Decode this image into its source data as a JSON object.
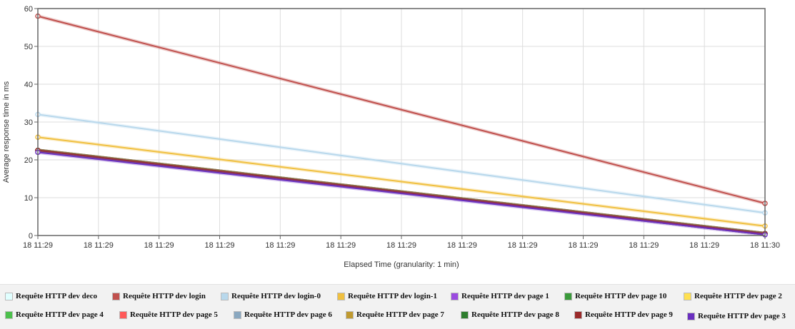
{
  "chart_data": {
    "type": "line",
    "xlabel": "Elapsed Time (granularity: 1 min)",
    "ylabel": "Average response time in ms",
    "ylim": [
      0,
      60
    ],
    "yticks": [
      0,
      10,
      20,
      30,
      40,
      50,
      60
    ],
    "xtick_labels": [
      "18 11:29",
      "18 11:29",
      "18 11:29",
      "18 11:29",
      "18 11:29",
      "18 11:29",
      "18 11:29",
      "18 11:29",
      "18 11:29",
      "18 11:29",
      "18 11:29",
      "18 11:29",
      "18 11:30"
    ],
    "x": [
      "18 11:29",
      "18 11:30"
    ],
    "grid": true,
    "legend_position": "bottom",
    "series": [
      {
        "name": "Requête HTTP dev deco",
        "color": "#e0ffff",
        "values": [
          22.5,
          0.5
        ]
      },
      {
        "name": "Requête HTTP dev login",
        "color": "#c0504d",
        "values": [
          58,
          8.5
        ]
      },
      {
        "name": "Requête HTTP dev login-0",
        "color": "#b8d8ec",
        "values": [
          32,
          6
        ]
      },
      {
        "name": "Requête HTTP dev login-1",
        "color": "#f0c040",
        "values": [
          26,
          2.5
        ]
      },
      {
        "name": "Requête HTTP dev page 1",
        "color": "#9b4be0",
        "values": [
          22.5,
          0.5
        ]
      },
      {
        "name": "Requête HTTP dev page 10",
        "color": "#3a9a3a",
        "values": [
          22.5,
          0.5
        ]
      },
      {
        "name": "Requête HTTP dev page 2",
        "color": "#ffe050",
        "values": [
          22.5,
          0.5
        ]
      },
      {
        "name": "Requête HTTP dev page 4",
        "color": "#4cc04c",
        "values": [
          22.5,
          0.5
        ]
      },
      {
        "name": "Requête HTTP dev page 5",
        "color": "#ff5a5a",
        "values": [
          22.5,
          0.5
        ]
      },
      {
        "name": "Requête HTTP dev page 6",
        "color": "#8aa8c0",
        "values": [
          22.5,
          0.5
        ]
      },
      {
        "name": "Requête HTTP dev page 7",
        "color": "#c09a30",
        "values": [
          22.5,
          0.5
        ]
      },
      {
        "name": "Requête HTTP dev page 8",
        "color": "#2e7d2e",
        "values": [
          22.5,
          0.5
        ]
      },
      {
        "name": "Requête HTTP dev page 9",
        "color": "#9a2a2a",
        "values": [
          22.5,
          0.5
        ]
      },
      {
        "name": "Requête HTTP dev page 3",
        "color": "#6a2fc0",
        "values": [
          22,
          0.2
        ]
      }
    ]
  }
}
